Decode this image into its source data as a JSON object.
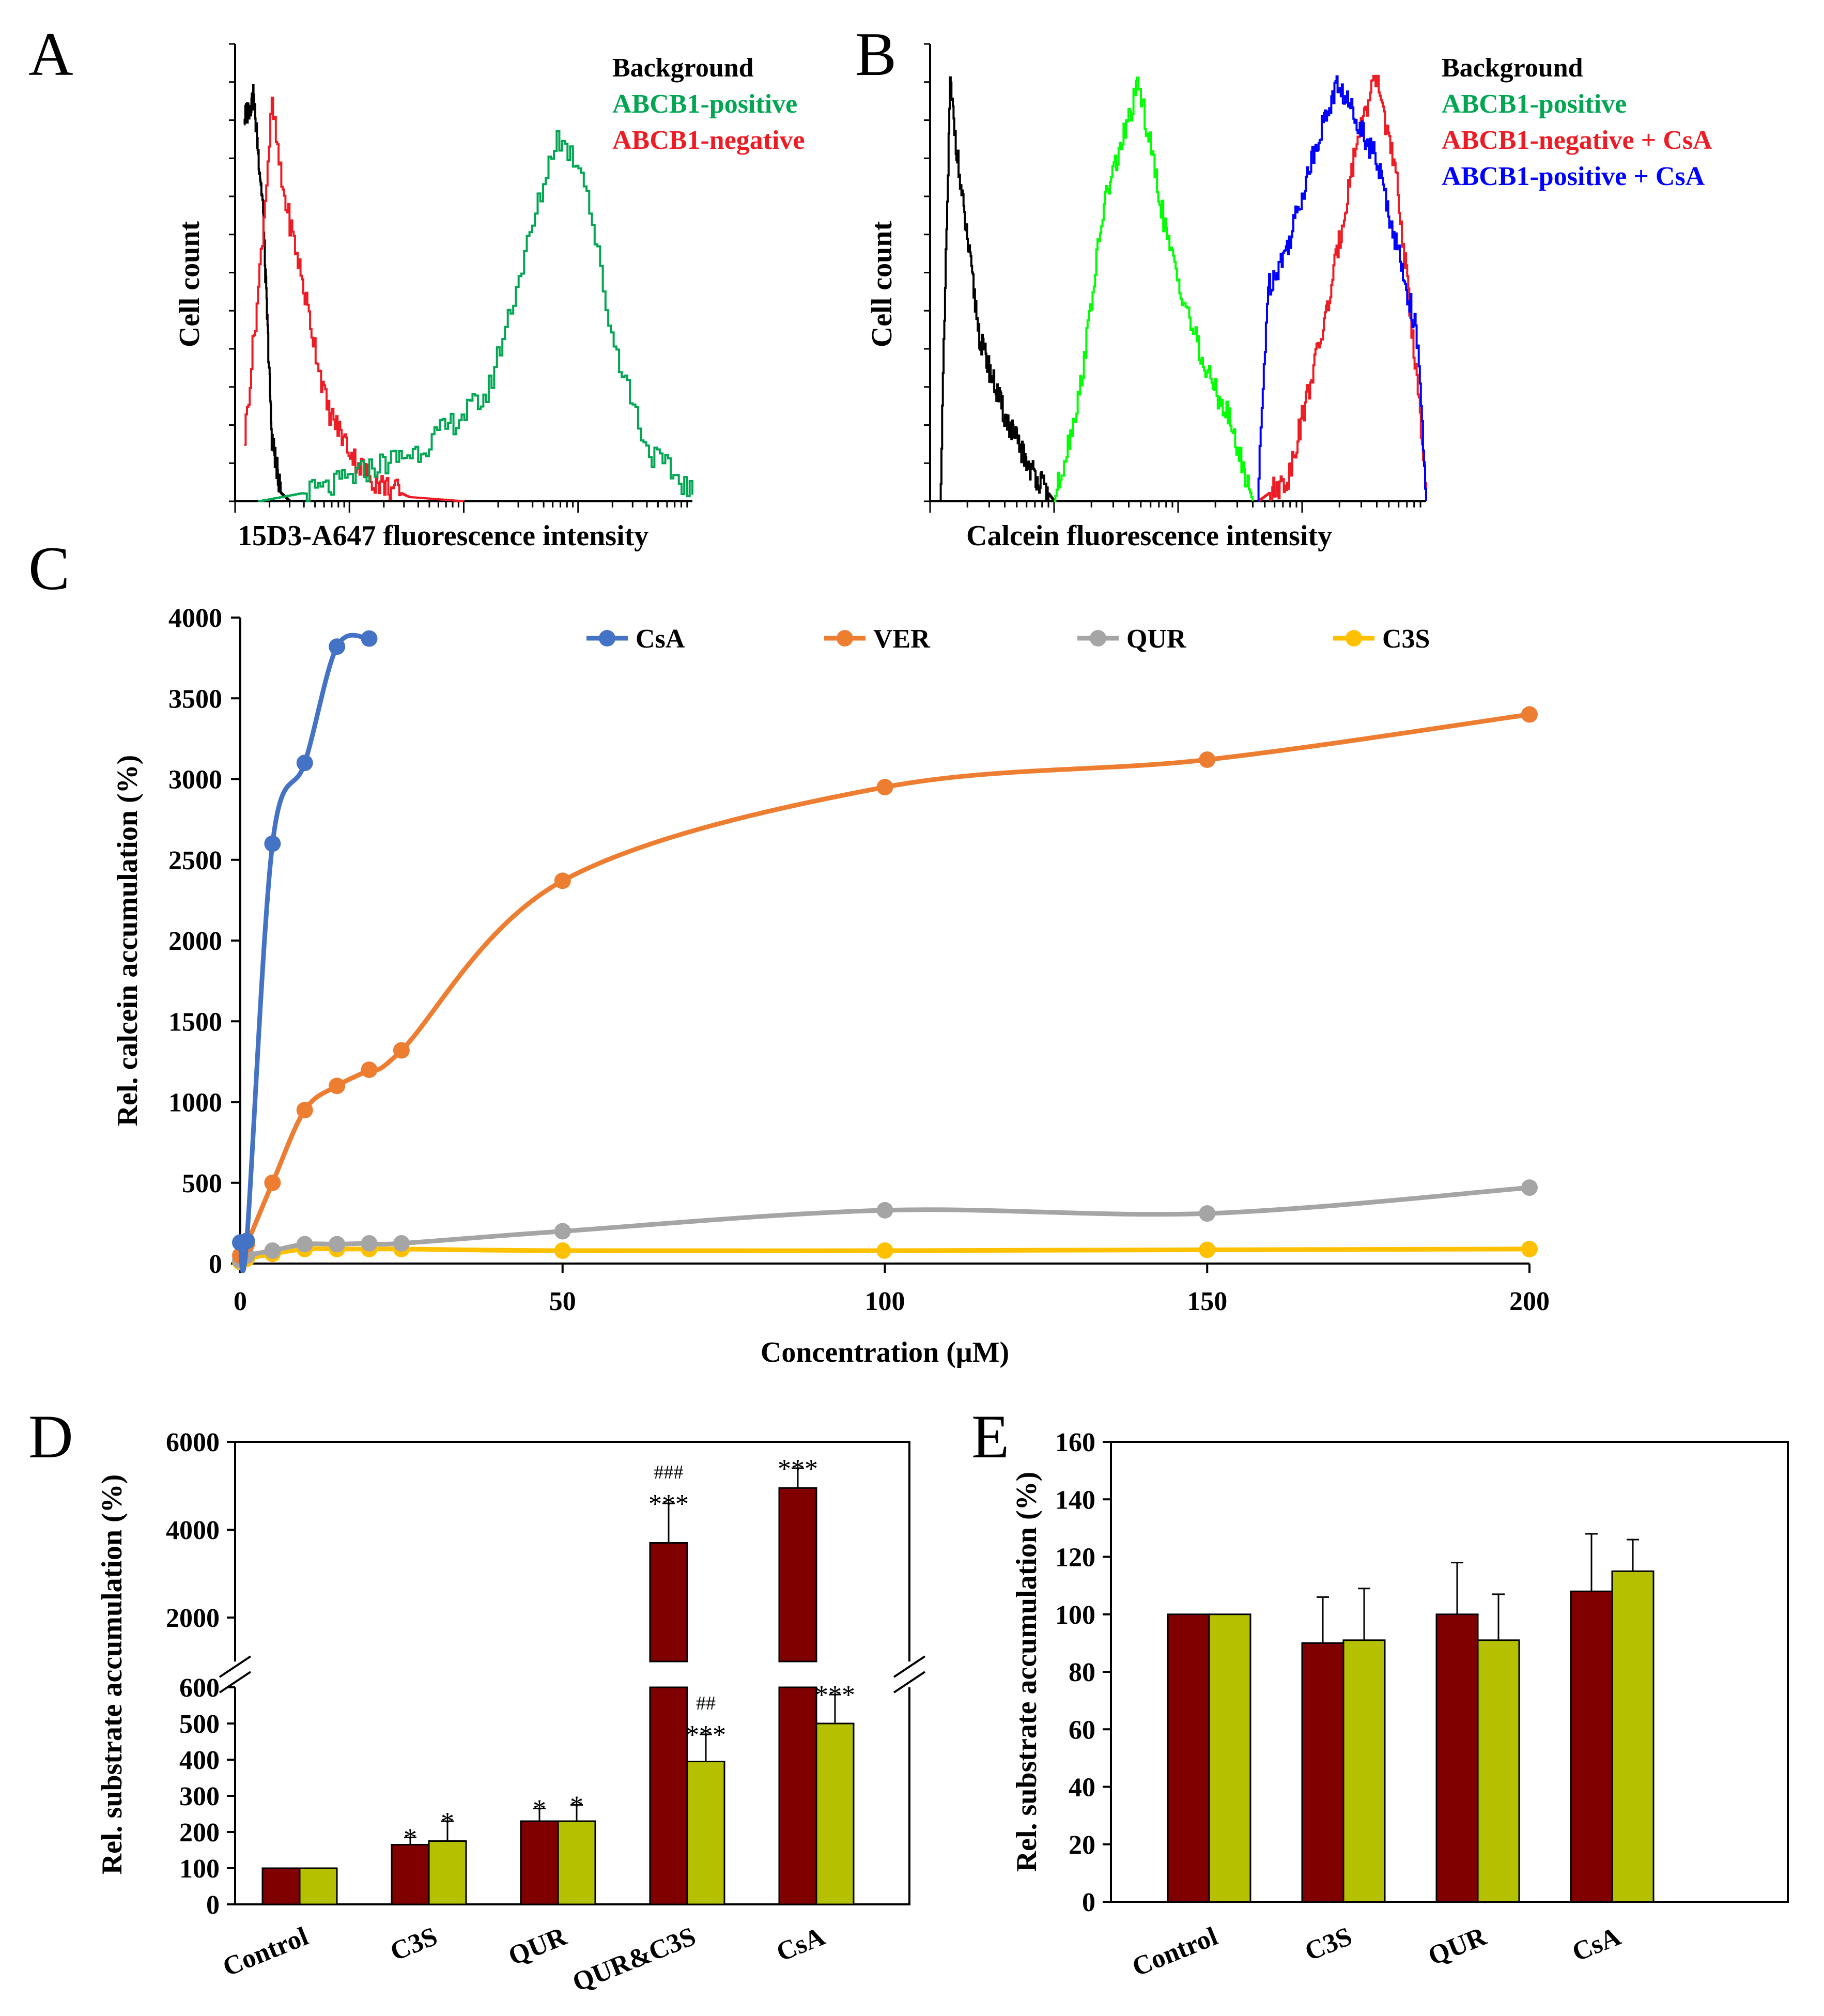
{
  "panels": {
    "A": {
      "letter": "A",
      "ylabel": "Cell count",
      "xlabel": "15D3-A647 fluorescence  intensity",
      "legend": [
        {
          "label": "Background",
          "color": "#000000"
        },
        {
          "label": "ABCB1-positive",
          "color": "#00a651"
        },
        {
          "label": "ABCB1-negative",
          "color": "#ed1c24"
        }
      ]
    },
    "B": {
      "letter": "B",
      "ylabel": "Cell count",
      "xlabel": "Calcein fluorescence intensity",
      "legend": [
        {
          "label": "Background",
          "color": "#000000"
        },
        {
          "label": "ABCB1-positive",
          "color": "#00a651"
        },
        {
          "label": "ABCB1-negative + CsA",
          "color": "#ed1c24"
        },
        {
          "label": "ABCB1-positive + CsA",
          "color": "#0000ff"
        }
      ]
    },
    "C": {
      "letter": "C"
    },
    "D": {
      "letter": "D"
    },
    "E": {
      "letter": "E"
    }
  },
  "chart_data": [
    {
      "panel": "A",
      "type": "line",
      "title": "",
      "xlabel": "15D3-A647 fluorescence  intensity",
      "ylabel": "Cell count",
      "x_scale": "log",
      "series": [
        {
          "name": "Background",
          "color": "#000000",
          "x": [
            0.02,
            0.04,
            0.06,
            0.08,
            0.1,
            0.12,
            0.14
          ],
          "y": [
            0.9,
            0.95,
            0.7,
            0.15,
            0.02,
            0.0,
            0.0
          ]
        },
        {
          "name": "ABCB1-negative",
          "color": "#ed1c24",
          "x": [
            0.02,
            0.05,
            0.08,
            0.1,
            0.14,
            0.2,
            0.26,
            0.3,
            0.38,
            0.5
          ],
          "y": [
            0.15,
            0.5,
            0.93,
            0.75,
            0.55,
            0.22,
            0.1,
            0.05,
            0.01,
            0.0
          ]
        },
        {
          "name": "ABCB1-positive",
          "color": "#00a651",
          "x": [
            0.05,
            0.2,
            0.3,
            0.4,
            0.55,
            0.65,
            0.7,
            0.76,
            0.82,
            0.9,
            1.0
          ],
          "y": [
            0.0,
            0.03,
            0.08,
            0.12,
            0.25,
            0.65,
            0.86,
            0.78,
            0.4,
            0.12,
            0.02
          ]
        }
      ]
    },
    {
      "panel": "B",
      "type": "line",
      "title": "",
      "xlabel": "Calcein fluorescence intensity",
      "ylabel": "Cell count",
      "x_scale": "log",
      "series": [
        {
          "name": "Background",
          "color": "#000000",
          "x": [
            0.02,
            0.04,
            0.06,
            0.1,
            0.15,
            0.2,
            0.25
          ],
          "y": [
            0.0,
            0.98,
            0.75,
            0.38,
            0.2,
            0.08,
            0.0
          ]
        },
        {
          "name": "ABCB1-positive",
          "color": "#00ff00",
          "x": [
            0.25,
            0.3,
            0.35,
            0.42,
            0.48,
            0.55,
            0.6,
            0.65
          ],
          "y": [
            0.0,
            0.25,
            0.7,
            0.98,
            0.6,
            0.32,
            0.2,
            0.0
          ]
        },
        {
          "name": "ABCB1-negative + CsA",
          "color": "#ed1c24",
          "x": [
            0.66,
            0.72,
            0.8,
            0.86,
            0.9,
            0.94,
            0.98,
            1.0
          ],
          "y": [
            0.0,
            0.05,
            0.45,
            0.85,
            1.0,
            0.75,
            0.3,
            0.0
          ]
        },
        {
          "name": "ABCB1-positive + CsA",
          "color": "#0000ff",
          "x": [
            0.66,
            0.68,
            0.72,
            0.78,
            0.82,
            0.86,
            0.9,
            0.94,
            0.98,
            1.0
          ],
          "y": [
            0.0,
            0.5,
            0.6,
            0.85,
            0.98,
            0.9,
            0.8,
            0.6,
            0.4,
            0.0
          ]
        }
      ]
    },
    {
      "panel": "C",
      "type": "line",
      "title": "",
      "xlabel": "Concentration (μM)",
      "ylabel": "Rel. calcein accumulation (%)",
      "xlim": [
        0,
        200
      ],
      "ylim": [
        0,
        4000
      ],
      "xticks": [
        0,
        50,
        100,
        150,
        200
      ],
      "yticks": [
        0,
        500,
        1000,
        1500,
        2000,
        2500,
        3000,
        3500,
        4000
      ],
      "legend_position": "top",
      "series": [
        {
          "name": "CsA",
          "color": "#4472c4",
          "x": [
            0,
            1,
            5,
            10,
            15,
            20
          ],
          "y": [
            130,
            140,
            2600,
            3100,
            3820,
            3870
          ]
        },
        {
          "name": "VER",
          "color": "#ed7d31",
          "x": [
            0,
            1,
            5,
            10,
            15,
            20,
            25,
            50,
            100,
            150,
            200
          ],
          "y": [
            50,
            120,
            500,
            950,
            1100,
            1200,
            1320,
            2370,
            2950,
            3120,
            3400
          ]
        },
        {
          "name": "QUR",
          "color": "#a5a5a5",
          "x": [
            0,
            1,
            5,
            10,
            15,
            20,
            25,
            50,
            100,
            150,
            200
          ],
          "y": [
            20,
            50,
            80,
            120,
            120,
            125,
            125,
            200,
            330,
            310,
            470
          ]
        },
        {
          "name": "C3S",
          "color": "#ffc000",
          "x": [
            0,
            1,
            5,
            10,
            15,
            20,
            25,
            50,
            100,
            150,
            200
          ],
          "y": [
            10,
            30,
            60,
            90,
            90,
            90,
            90,
            80,
            80,
            85,
            90
          ]
        }
      ]
    },
    {
      "panel": "D",
      "type": "bar",
      "title": "",
      "xlabel": "",
      "ylabel": "Rel. substrate accumulation (%)",
      "categories": [
        "Control",
        "C3S",
        "QUR",
        "QUR&C3S",
        "CsA"
      ],
      "y_axis_break": [
        600,
        1000
      ],
      "ylim_lower": [
        0,
        600
      ],
      "ylim_upper": [
        1000,
        6000
      ],
      "yticks_lower": [
        0,
        100,
        200,
        300,
        400,
        500,
        600
      ],
      "yticks_upper": [
        2000,
        4000,
        6000
      ],
      "series": [
        {
          "name": "red series",
          "color": "#800000",
          "values": [
            100,
            165,
            230,
            3700,
            4950
          ],
          "errors": [
            0,
            20,
            35,
            900,
            450
          ],
          "annotations": [
            "",
            "*",
            "*",
            "###\n***",
            "***"
          ]
        },
        {
          "name": "green series",
          "color": "#b5c000",
          "values": [
            100,
            175,
            230,
            395,
            500
          ],
          "errors": [
            0,
            55,
            45,
            75,
            80
          ],
          "annotations": [
            "",
            "*",
            "*",
            "##\n***",
            "***"
          ]
        }
      ]
    },
    {
      "panel": "E",
      "type": "bar",
      "title": "",
      "xlabel": "",
      "ylabel": "Rel. substrate accumulation (%)",
      "categories": [
        "Control",
        "C3S",
        "QUR",
        "CsA"
      ],
      "ylim": [
        0,
        160
      ],
      "yticks": [
        0,
        20,
        40,
        60,
        80,
        100,
        120,
        140,
        160
      ],
      "series": [
        {
          "name": "red series",
          "color": "#800000",
          "values": [
            100,
            90,
            100,
            108
          ],
          "errors": [
            0,
            16,
            18,
            20
          ]
        },
        {
          "name": "green series",
          "color": "#b5c000",
          "values": [
            100,
            91,
            91,
            115
          ],
          "errors": [
            0,
            18,
            16,
            11
          ]
        }
      ]
    }
  ]
}
